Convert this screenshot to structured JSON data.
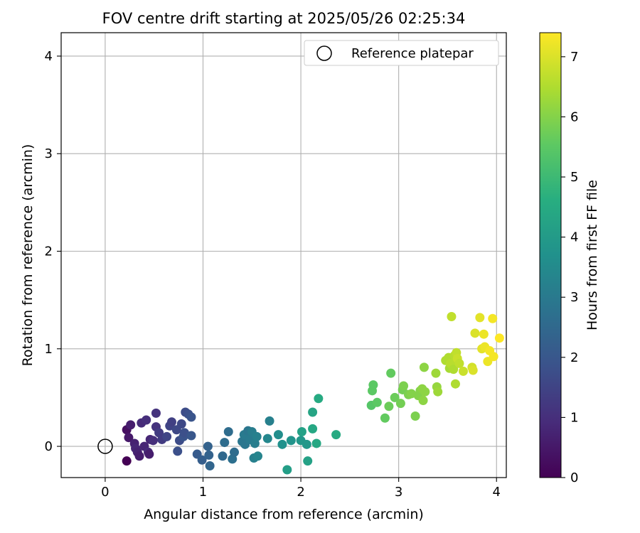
{
  "chart_data": {
    "type": "scatter",
    "title": "FOV centre drift starting at 2025/05/26 02:25:34",
    "xlabel": "Angular distance from reference (arcmin)",
    "ylabel": "Rotation from reference (arcmin)",
    "xlim": [
      -0.45,
      4.1
    ],
    "ylim": [
      -0.32,
      4.24
    ],
    "xticks": [
      0,
      1,
      2,
      3,
      4
    ],
    "yticks": [
      0,
      1,
      2,
      3,
      4
    ],
    "grid": true,
    "legend": {
      "placement": "top-right",
      "entries": [
        "Reference platepar"
      ]
    },
    "reference_point": {
      "label": "Reference platepar",
      "x": 0,
      "y": 0
    },
    "colorbar": {
      "label": "Hours from first FF file",
      "colormap": "viridis",
      "range": [
        0,
        7.4
      ],
      "ticks": [
        0,
        1,
        2,
        3,
        4,
        5,
        6,
        7
      ]
    },
    "series": [
      {
        "points": [
          {
            "x": 0.22,
            "y": -0.15,
            "t": 0.0
          },
          {
            "x": 0.22,
            "y": 0.17,
            "t": 0.3
          },
          {
            "x": 0.24,
            "y": 0.09,
            "t": 0.5
          },
          {
            "x": 0.26,
            "y": 0.22,
            "t": 0.6
          },
          {
            "x": 0.3,
            "y": 0.03,
            "t": 0.7
          },
          {
            "x": 0.31,
            "y": -0.02,
            "t": 0.8
          },
          {
            "x": 0.33,
            "y": -0.06,
            "t": 0.7
          },
          {
            "x": 0.35,
            "y": -0.1,
            "t": 0.6
          },
          {
            "x": 0.37,
            "y": 0.24,
            "t": 0.9
          },
          {
            "x": 0.4,
            "y": 0.0,
            "t": 0.8
          },
          {
            "x": 0.42,
            "y": 0.27,
            "t": 1.0
          },
          {
            "x": 0.44,
            "y": -0.06,
            "t": 0.9
          },
          {
            "x": 0.45,
            "y": -0.08,
            "t": 0.6
          },
          {
            "x": 0.46,
            "y": 0.07,
            "t": 0.8
          },
          {
            "x": 0.49,
            "y": 0.06,
            "t": 1.0
          },
          {
            "x": 0.52,
            "y": 0.34,
            "t": 1.1
          },
          {
            "x": 0.52,
            "y": 0.2,
            "t": 1.1
          },
          {
            "x": 0.55,
            "y": 0.14,
            "t": 1.3
          },
          {
            "x": 0.58,
            "y": 0.07,
            "t": 1.3
          },
          {
            "x": 0.63,
            "y": 0.1,
            "t": 1.5
          },
          {
            "x": 0.66,
            "y": 0.21,
            "t": 1.5
          },
          {
            "x": 0.68,
            "y": 0.25,
            "t": 1.4
          },
          {
            "x": 0.73,
            "y": 0.17,
            "t": 1.6
          },
          {
            "x": 0.74,
            "y": -0.05,
            "t": 1.8
          },
          {
            "x": 0.76,
            "y": 0.06,
            "t": 1.7
          },
          {
            "x": 0.78,
            "y": 0.23,
            "t": 1.6
          },
          {
            "x": 0.8,
            "y": 0.1,
            "t": 1.9
          },
          {
            "x": 0.81,
            "y": 0.14,
            "t": 1.8
          },
          {
            "x": 0.82,
            "y": 0.35,
            "t": 1.7
          },
          {
            "x": 0.85,
            "y": 0.33,
            "t": 1.8
          },
          {
            "x": 0.88,
            "y": 0.3,
            "t": 1.9
          },
          {
            "x": 0.88,
            "y": 0.11,
            "t": 2.0
          },
          {
            "x": 0.94,
            "y": -0.08,
            "t": 2.1
          },
          {
            "x": 0.99,
            "y": -0.14,
            "t": 2.2
          },
          {
            "x": 1.05,
            "y": 0.0,
            "t": 2.3
          },
          {
            "x": 1.06,
            "y": -0.09,
            "t": 2.3
          },
          {
            "x": 1.07,
            "y": -0.2,
            "t": 2.4
          },
          {
            "x": 1.2,
            "y": -0.1,
            "t": 2.5
          },
          {
            "x": 1.22,
            "y": 0.04,
            "t": 2.6
          },
          {
            "x": 1.26,
            "y": 0.15,
            "t": 2.6
          },
          {
            "x": 1.3,
            "y": -0.13,
            "t": 2.7
          },
          {
            "x": 1.32,
            "y": -0.06,
            "t": 2.6
          },
          {
            "x": 1.4,
            "y": 0.05,
            "t": 2.9
          },
          {
            "x": 1.42,
            "y": 0.12,
            "t": 3.0
          },
          {
            "x": 1.43,
            "y": 0.02,
            "t": 2.9
          },
          {
            "x": 1.46,
            "y": 0.16,
            "t": 2.9
          },
          {
            "x": 1.48,
            "y": 0.07,
            "t": 3.0
          },
          {
            "x": 1.5,
            "y": 0.15,
            "t": 3.1
          },
          {
            "x": 1.52,
            "y": -0.12,
            "t": 3.2
          },
          {
            "x": 1.53,
            "y": 0.03,
            "t": 3.1
          },
          {
            "x": 1.55,
            "y": 0.1,
            "t": 3.2
          },
          {
            "x": 1.56,
            "y": -0.1,
            "t": 3.3
          },
          {
            "x": 1.66,
            "y": 0.08,
            "t": 3.4
          },
          {
            "x": 1.68,
            "y": 0.26,
            "t": 3.2
          },
          {
            "x": 1.77,
            "y": 0.12,
            "t": 3.6
          },
          {
            "x": 1.81,
            "y": 0.02,
            "t": 3.7
          },
          {
            "x": 1.86,
            "y": -0.24,
            "t": 4.1
          },
          {
            "x": 1.9,
            "y": 0.06,
            "t": 3.8
          },
          {
            "x": 2.0,
            "y": 0.06,
            "t": 3.9
          },
          {
            "x": 2.01,
            "y": 0.15,
            "t": 4.2
          },
          {
            "x": 2.06,
            "y": 0.02,
            "t": 3.9
          },
          {
            "x": 2.07,
            "y": -0.15,
            "t": 4.2
          },
          {
            "x": 2.12,
            "y": 0.18,
            "t": 4.4
          },
          {
            "x": 2.12,
            "y": 0.35,
            "t": 4.3
          },
          {
            "x": 2.16,
            "y": 0.03,
            "t": 4.4
          },
          {
            "x": 2.18,
            "y": 0.49,
            "t": 4.5
          },
          {
            "x": 2.36,
            "y": 0.12,
            "t": 4.5
          },
          {
            "x": 2.72,
            "y": 0.42,
            "t": 5.4
          },
          {
            "x": 2.73,
            "y": 0.57,
            "t": 5.5
          },
          {
            "x": 2.74,
            "y": 0.63,
            "t": 5.5
          },
          {
            "x": 2.78,
            "y": 0.45,
            "t": 5.5
          },
          {
            "x": 2.86,
            "y": 0.29,
            "t": 5.6
          },
          {
            "x": 2.9,
            "y": 0.41,
            "t": 5.7
          },
          {
            "x": 2.92,
            "y": 0.75,
            "t": 5.6
          },
          {
            "x": 2.96,
            "y": 0.5,
            "t": 5.7
          },
          {
            "x": 3.02,
            "y": 0.44,
            "t": 5.8
          },
          {
            "x": 3.04,
            "y": 0.58,
            "t": 5.8
          },
          {
            "x": 3.05,
            "y": 0.62,
            "t": 5.9
          },
          {
            "x": 3.1,
            "y": 0.53,
            "t": 5.9
          },
          {
            "x": 3.13,
            "y": 0.54,
            "t": 6.0
          },
          {
            "x": 3.17,
            "y": 0.31,
            "t": 5.9
          },
          {
            "x": 3.2,
            "y": 0.52,
            "t": 6.0
          },
          {
            "x": 3.22,
            "y": 0.57,
            "t": 6.0
          },
          {
            "x": 3.24,
            "y": 0.59,
            "t": 6.1
          },
          {
            "x": 3.25,
            "y": 0.47,
            "t": 6.1
          },
          {
            "x": 3.26,
            "y": 0.81,
            "t": 6.1
          },
          {
            "x": 3.27,
            "y": 0.56,
            "t": 6.1
          },
          {
            "x": 3.38,
            "y": 0.75,
            "t": 6.3
          },
          {
            "x": 3.39,
            "y": 0.61,
            "t": 6.2
          },
          {
            "x": 3.4,
            "y": 0.56,
            "t": 6.3
          },
          {
            "x": 3.48,
            "y": 0.88,
            "t": 6.5
          },
          {
            "x": 3.51,
            "y": 0.91,
            "t": 6.5
          },
          {
            "x": 3.52,
            "y": 0.8,
            "t": 6.4
          },
          {
            "x": 3.53,
            "y": 0.85,
            "t": 6.6
          },
          {
            "x": 3.54,
            "y": 1.33,
            "t": 6.7
          },
          {
            "x": 3.55,
            "y": 0.83,
            "t": 6.6
          },
          {
            "x": 3.56,
            "y": 0.79,
            "t": 6.5
          },
          {
            "x": 3.57,
            "y": 0.93,
            "t": 6.6
          },
          {
            "x": 3.58,
            "y": 0.64,
            "t": 6.5
          },
          {
            "x": 3.59,
            "y": 0.96,
            "t": 6.7
          },
          {
            "x": 3.6,
            "y": 0.9,
            "t": 6.8
          },
          {
            "x": 3.62,
            "y": 0.85,
            "t": 6.7
          },
          {
            "x": 3.66,
            "y": 0.77,
            "t": 6.8
          },
          {
            "x": 3.75,
            "y": 0.81,
            "t": 6.9
          },
          {
            "x": 3.76,
            "y": 0.78,
            "t": 7.0
          },
          {
            "x": 3.78,
            "y": 1.16,
            "t": 7.0
          },
          {
            "x": 3.83,
            "y": 1.32,
            "t": 7.1
          },
          {
            "x": 3.85,
            "y": 1.0,
            "t": 7.1
          },
          {
            "x": 3.87,
            "y": 1.15,
            "t": 7.2
          },
          {
            "x": 3.88,
            "y": 1.02,
            "t": 7.2
          },
          {
            "x": 3.91,
            "y": 0.87,
            "t": 7.2
          },
          {
            "x": 3.93,
            "y": 0.98,
            "t": 7.3
          },
          {
            "x": 3.96,
            "y": 1.31,
            "t": 7.3
          },
          {
            "x": 3.97,
            "y": 0.92,
            "t": 7.3
          },
          {
            "x": 4.03,
            "y": 1.11,
            "t": 7.4
          }
        ]
      }
    ]
  }
}
